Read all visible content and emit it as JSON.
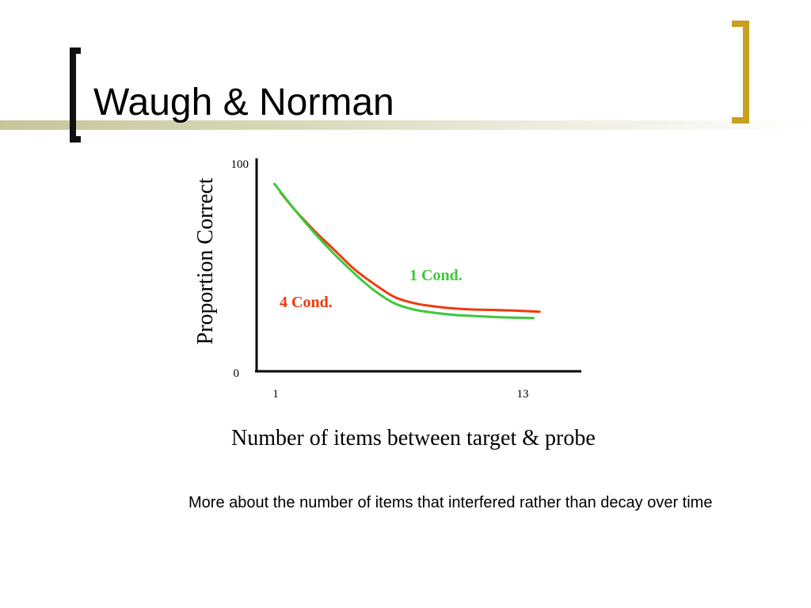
{
  "slide": {
    "title": "Waugh & Norman",
    "body_text": "More about the number of items that interfered rather than decay over time"
  },
  "colors": {
    "series_1_cond": "#3cc83c",
    "series_4_cond": "#ee3a0e",
    "bracket_left": "#111111",
    "bracket_right": "#c8a020"
  },
  "chart_data": {
    "type": "line",
    "title": "",
    "xlabel": "Number of items between target & probe",
    "ylabel": "Proportion Correct",
    "x_ticks": [
      "1",
      "13"
    ],
    "y_ticks": [
      "0",
      "100"
    ],
    "xlim": [
      0.1,
      16.4
    ],
    "ylim": [
      0,
      100
    ],
    "grid": false,
    "series": [
      {
        "name": "1 Cond.",
        "color": "#3cc83c",
        "x": [
          1,
          2,
          3,
          4,
          5,
          6,
          7,
          8,
          9,
          10,
          11,
          12,
          13,
          14
        ],
        "y": [
          88,
          76,
          65,
          55,
          46,
          38,
          32,
          29,
          27.5,
          26.5,
          26,
          25.5,
          25.2,
          25
        ]
      },
      {
        "name": "4 Cond.",
        "color": "#ee3a0e",
        "x": [
          1.3,
          2,
          3,
          4,
          5,
          6,
          7,
          8,
          9,
          10,
          11,
          12,
          13,
          14.3
        ],
        "y": [
          84,
          76,
          66,
          57,
          48,
          41,
          35,
          32,
          30.5,
          29.5,
          29,
          28.8,
          28.5,
          28
        ]
      }
    ]
  }
}
